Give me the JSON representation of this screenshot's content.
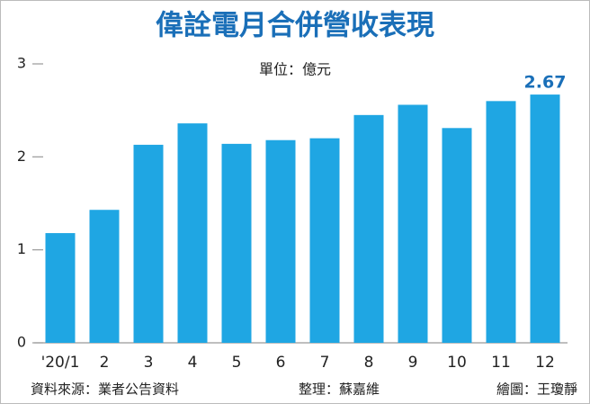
{
  "chart_data": {
    "type": "bar",
    "title": "偉詮電月合併營收表現",
    "subtitle": "單位：億元",
    "categories": [
      "'20/1",
      "2",
      "3",
      "4",
      "5",
      "6",
      "7",
      "8",
      "9",
      "10",
      "11",
      "12"
    ],
    "values": [
      1.18,
      1.43,
      2.13,
      2.36,
      2.14,
      2.18,
      2.2,
      2.45,
      2.56,
      2.31,
      2.6,
      2.67
    ],
    "value_labels": [
      null,
      null,
      null,
      null,
      null,
      null,
      null,
      null,
      null,
      null,
      null,
      "2.67"
    ],
    "color": "#1fa6e3",
    "ylim": [
      0,
      3
    ],
    "yticks": [
      0,
      1,
      2,
      3
    ],
    "source": "資料來源：業者公告資料",
    "editor": "整理：蘇嘉維",
    "illustrator": "繪圖：王瓊靜"
  }
}
